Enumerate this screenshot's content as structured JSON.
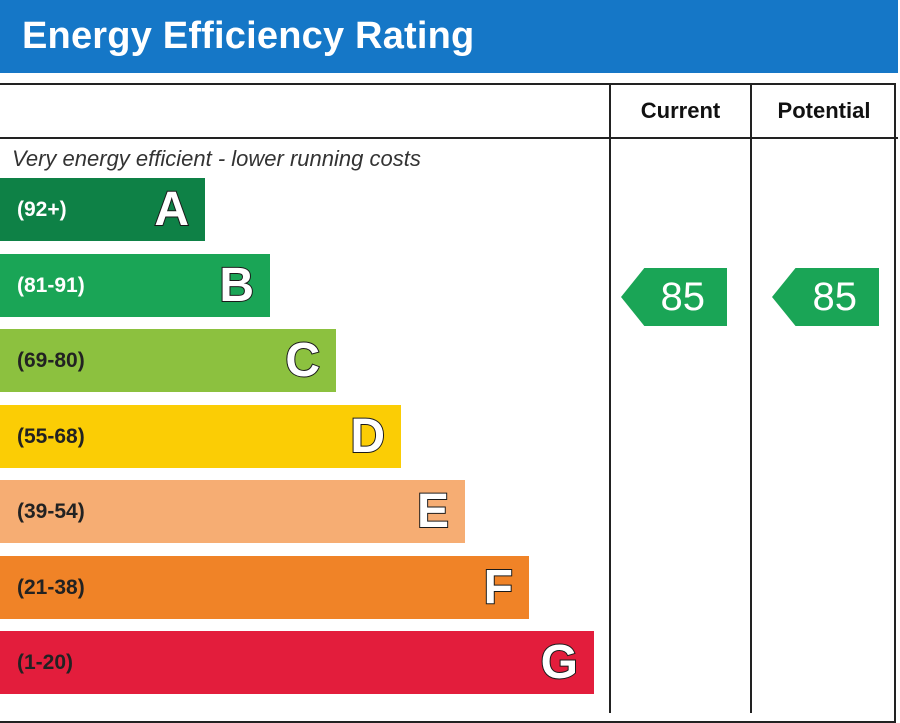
{
  "header": {
    "title": "Energy Efficiency Rating"
  },
  "columns": {
    "current_label": "Current",
    "potential_label": "Potential"
  },
  "top_note": "Very energy efficient - lower running costs",
  "chart_data": {
    "type": "bar",
    "title": "Energy Efficiency Rating",
    "categories": [
      "A",
      "B",
      "C",
      "D",
      "E",
      "F",
      "G"
    ],
    "bands": [
      {
        "letter": "A",
        "range": "(92+)",
        "color": "#0e8146",
        "text_color": "#ffffff"
      },
      {
        "letter": "B",
        "range": "(81-91)",
        "color": "#1aa556",
        "text_color": "#ffffff"
      },
      {
        "letter": "C",
        "range": "(69-80)",
        "color": "#8cc13f",
        "text_color": "#222222"
      },
      {
        "letter": "D",
        "range": "(55-68)",
        "color": "#fbcd05",
        "text_color": "#222222"
      },
      {
        "letter": "E",
        "range": "(39-54)",
        "color": "#f6ad73",
        "text_color": "#222222"
      },
      {
        "letter": "F",
        "range": "(21-38)",
        "color": "#f08327",
        "text_color": "#222222"
      },
      {
        "letter": "G",
        "range": "(1-20)",
        "color": "#e31d3c",
        "text_color": "#222222"
      }
    ],
    "current": {
      "value": 85,
      "band": "B",
      "label": "85",
      "color": "#1aa556"
    },
    "potential": {
      "value": 85,
      "band": "B",
      "label": "85",
      "color": "#1aa556"
    }
  }
}
